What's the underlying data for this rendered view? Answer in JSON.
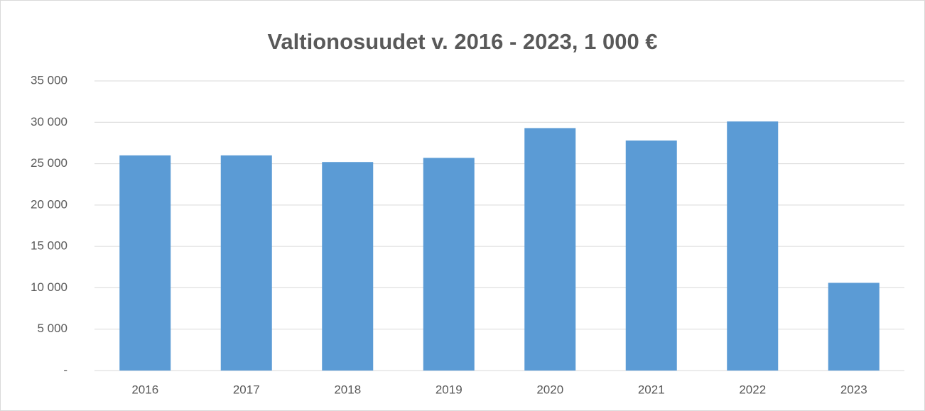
{
  "chart_data": {
    "type": "bar",
    "title": "Valtionosuudet v. 2016 - 2023, 1 000 €",
    "categories": [
      "2016",
      "2017",
      "2018",
      "2019",
      "2020",
      "2021",
      "2022",
      "2023"
    ],
    "values": [
      26000,
      26000,
      25200,
      25700,
      29300,
      27800,
      30100,
      10600
    ],
    "color": "#5b9bd5",
    "ylim": [
      0,
      35000
    ],
    "yticks": [
      {
        "value": 0,
        "label": "-"
      },
      {
        "value": 5000,
        "label": "5 000"
      },
      {
        "value": 10000,
        "label": "10 000"
      },
      {
        "value": 15000,
        "label": "15 000"
      },
      {
        "value": 20000,
        "label": "20 000"
      },
      {
        "value": 25000,
        "label": "25 000"
      },
      {
        "value": 30000,
        "label": "30 000"
      },
      {
        "value": 35000,
        "label": "35 000"
      }
    ],
    "grid": true
  }
}
